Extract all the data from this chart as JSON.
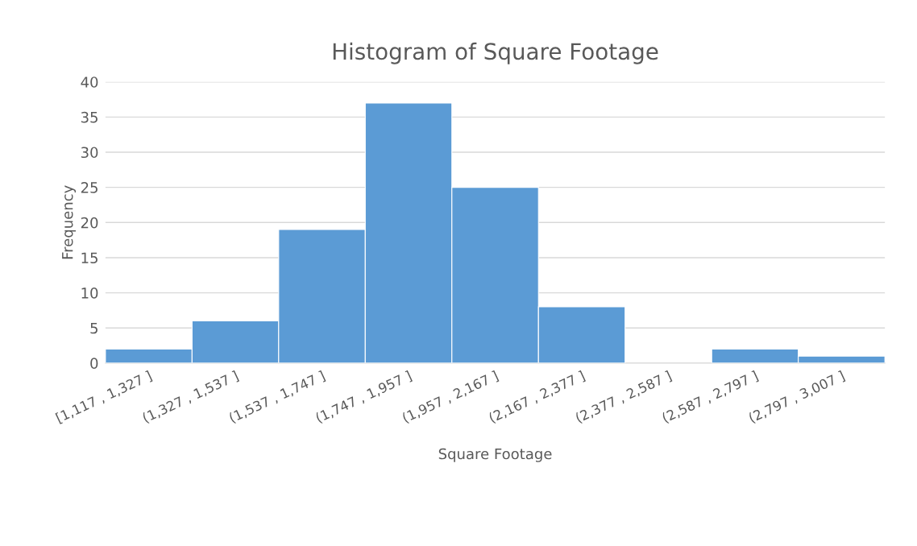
{
  "chart_data": {
    "type": "bar",
    "title": "Histogram of Square Footage",
    "xlabel": "Square Footage",
    "ylabel": "Frequency",
    "categories": [
      "[1,117 , 1,327 ]",
      "(1,327 , 1,537 ]",
      "(1,537 , 1,747 ]",
      "(1,747 , 1,957 ]",
      "(1,957 , 2,167 ]",
      "(2,167 , 2,377 ]",
      "(2,377 , 2,587 ]",
      "(2,587 , 2,797 ]",
      "(2,797 , 3,007 ]"
    ],
    "values": [
      2,
      6,
      19,
      37,
      25,
      8,
      0,
      2,
      1
    ],
    "color": "#5b9bd5",
    "ylim": [
      0,
      40
    ],
    "yticks": [
      0,
      5,
      10,
      15,
      20,
      25,
      30,
      35,
      40
    ],
    "grid": "y"
  }
}
